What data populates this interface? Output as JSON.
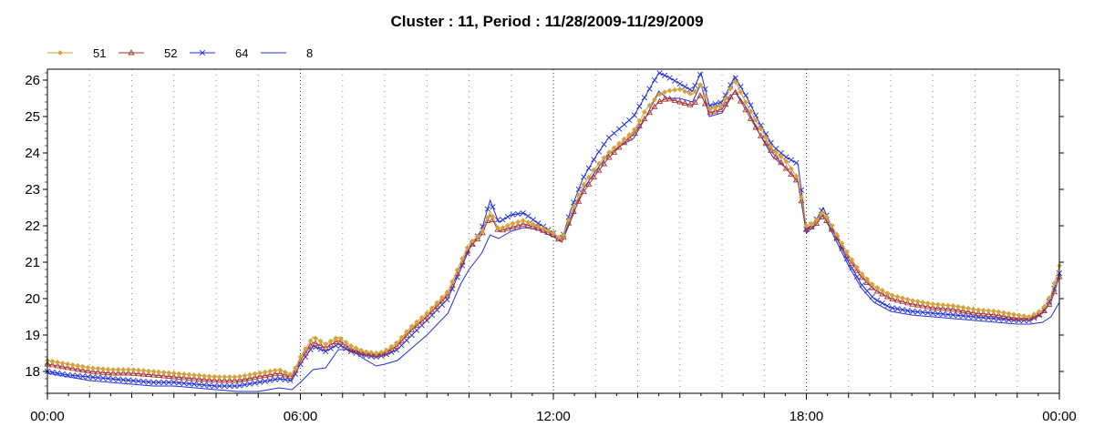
{
  "chart_data": {
    "type": "line",
    "title": "Cluster : 11, Period : 11/28/2009-11/29/2009",
    "xlabel": "",
    "ylabel": "",
    "x_tick_labels": [
      "00:00",
      "06:00",
      "12:00",
      "18:00",
      "00:00"
    ],
    "x_range_hours": [
      0,
      24
    ],
    "y_ticks": [
      18,
      19,
      20,
      21,
      22,
      23,
      24,
      25,
      26
    ],
    "ylim": [
      17.4,
      26.3
    ],
    "grid": "vertical dotted",
    "legend_position": "top-left",
    "hours": [
      0,
      0.5,
      1,
      1.5,
      2,
      2.5,
      3,
      3.5,
      4,
      4.5,
      5,
      5.5,
      5.8,
      6,
      6.3,
      6.6,
      6.9,
      7.2,
      7.5,
      7.8,
      8,
      8.3,
      8.6,
      9,
      9.5,
      9.8,
      10,
      10.3,
      10.5,
      10.7,
      11,
      11.3,
      11.6,
      12,
      12.2,
      12.4,
      12.7,
      13,
      13.3,
      13.6,
      13.9,
      14.2,
      14.5,
      14.7,
      15,
      15.3,
      15.5,
      15.7,
      16,
      16.3,
      16.6,
      16.9,
      17.2,
      17.5,
      17.8,
      18,
      18.2,
      18.4,
      18.7,
      19,
      19.3,
      19.6,
      20,
      20.5,
      21,
      21.5,
      22,
      22.5,
      23,
      23.3,
      23.6,
      23.8,
      24
    ],
    "series": [
      {
        "name": "51",
        "color": "#d4a33a",
        "marker": "diamond",
        "values": [
          18.3,
          18.2,
          18.1,
          18.05,
          18.05,
          18.0,
          17.95,
          17.9,
          17.85,
          17.85,
          17.95,
          18.05,
          17.9,
          18.4,
          18.95,
          18.75,
          18.95,
          18.7,
          18.55,
          18.5,
          18.55,
          18.8,
          19.2,
          19.6,
          20.2,
          21.0,
          21.5,
          21.8,
          22.4,
          21.9,
          22.05,
          22.15,
          22.0,
          21.8,
          21.6,
          22.3,
          23.1,
          23.6,
          24.0,
          24.3,
          24.6,
          25.2,
          25.6,
          25.7,
          25.75,
          25.6,
          25.9,
          25.2,
          25.3,
          26.0,
          25.3,
          24.7,
          24.1,
          23.8,
          23.3,
          22.0,
          22.1,
          22.4,
          21.8,
          21.2,
          20.7,
          20.35,
          20.1,
          19.95,
          19.85,
          19.8,
          19.7,
          19.65,
          19.55,
          19.5,
          19.7,
          20.1,
          20.9
        ]
      },
      {
        "name": "52",
        "color": "#a83232",
        "marker": "triangle",
        "values": [
          18.2,
          18.1,
          18.0,
          17.95,
          17.95,
          17.9,
          17.85,
          17.8,
          17.75,
          17.75,
          17.85,
          17.95,
          17.85,
          18.3,
          18.8,
          18.65,
          18.85,
          18.6,
          18.5,
          18.45,
          18.5,
          18.7,
          19.1,
          19.5,
          20.1,
          20.9,
          21.4,
          21.75,
          22.3,
          21.85,
          21.95,
          22.05,
          21.95,
          21.75,
          21.55,
          22.2,
          22.9,
          23.4,
          23.85,
          24.2,
          24.5,
          25.0,
          25.4,
          25.5,
          25.4,
          25.3,
          25.6,
          25.1,
          25.2,
          25.7,
          25.1,
          24.5,
          24.0,
          23.6,
          23.2,
          21.9,
          22.0,
          22.3,
          21.7,
          21.1,
          20.6,
          20.25,
          20.0,
          19.85,
          19.75,
          19.7,
          19.6,
          19.55,
          19.45,
          19.45,
          19.6,
          19.9,
          20.6
        ]
      },
      {
        "name": "64",
        "color": "#1f2fd6",
        "marker": "x",
        "values": [
          18.0,
          17.9,
          17.85,
          17.8,
          17.75,
          17.7,
          17.7,
          17.65,
          17.6,
          17.6,
          17.7,
          17.8,
          17.75,
          18.2,
          18.7,
          18.55,
          18.75,
          18.55,
          18.45,
          18.4,
          18.45,
          18.6,
          18.95,
          19.4,
          20.0,
          20.8,
          21.35,
          21.9,
          22.7,
          22.1,
          22.3,
          22.35,
          22.1,
          21.8,
          21.6,
          22.4,
          23.3,
          23.9,
          24.4,
          24.7,
          25.0,
          25.6,
          26.2,
          26.1,
          25.9,
          25.7,
          26.2,
          25.3,
          25.4,
          26.1,
          25.5,
          24.8,
          24.2,
          23.9,
          23.7,
          21.9,
          22.1,
          22.5,
          21.7,
          21.0,
          20.4,
          20.0,
          19.75,
          19.65,
          19.6,
          19.55,
          19.5,
          19.45,
          19.4,
          19.4,
          19.6,
          20.0,
          20.7
        ]
      },
      {
        "name": "8",
        "color": "#1f2fd6",
        "marker": "none",
        "values": [
          17.95,
          17.85,
          17.75,
          17.7,
          17.65,
          17.6,
          17.6,
          17.55,
          17.5,
          17.45,
          17.45,
          17.55,
          17.5,
          17.7,
          18.05,
          18.1,
          18.6,
          18.6,
          18.35,
          18.15,
          18.2,
          18.3,
          18.6,
          19.0,
          19.6,
          20.4,
          20.8,
          21.25,
          21.75,
          21.65,
          21.85,
          21.95,
          21.9,
          21.7,
          21.55,
          22.1,
          23.0,
          23.5,
          23.95,
          24.2,
          24.4,
          25.0,
          25.7,
          25.5,
          25.5,
          25.4,
          25.9,
          25.0,
          25.1,
          25.7,
          25.2,
          24.5,
          23.9,
          23.6,
          23.2,
          21.8,
          22.0,
          22.3,
          21.6,
          20.9,
          20.3,
          19.9,
          19.65,
          19.55,
          19.5,
          19.45,
          19.4,
          19.35,
          19.3,
          19.3,
          19.35,
          19.5,
          19.9
        ]
      }
    ]
  }
}
